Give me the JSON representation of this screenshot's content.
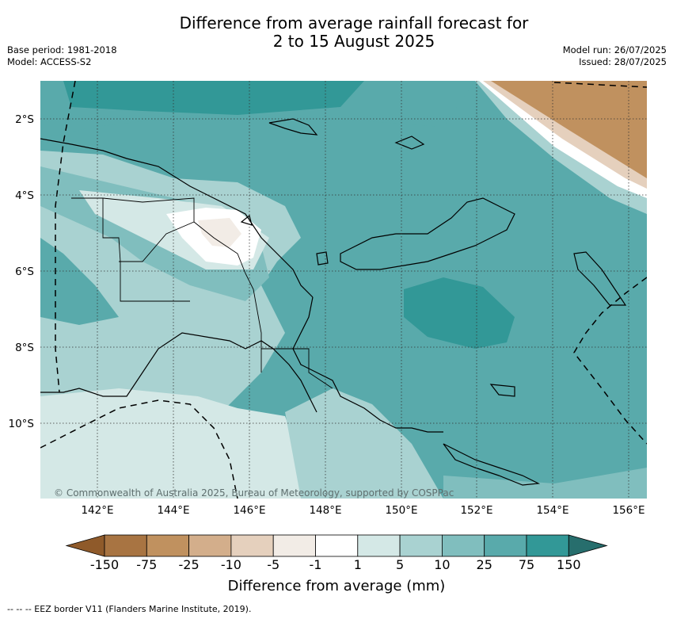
{
  "title": {
    "line1": "Difference from average rainfall forecast for",
    "line2": "2 to 15 August 2025"
  },
  "meta_left": {
    "base_period": "Base period: 1981-2018",
    "model": "Model: ACCESS-S2"
  },
  "meta_right": {
    "model_run": "Model run: 26/07/2025",
    "issued": "Issued: 28/07/2025"
  },
  "map": {
    "lat_labels": [
      "2°S",
      "4°S",
      "6°S",
      "8°S",
      "10°S"
    ],
    "lon_labels": [
      "142°E",
      "144°E",
      "146°E",
      "148°E",
      "150°E",
      "152°E",
      "154°E",
      "156°E"
    ],
    "credit": "© Commonwealth of Australia 2025, Bureau of Meteorology, supported by COSPPac",
    "gridlines": "dotted",
    "eez_border_style": "dashed",
    "region_focus": "Papua New Guinea"
  },
  "colorbar": {
    "title": "Difference from average (mm)",
    "ticks": [
      "-150",
      "-75",
      "-25",
      "-10",
      "-5",
      "-1",
      "1",
      "5",
      "10",
      "25",
      "75",
      "150"
    ],
    "colors": [
      "#8f5a2a",
      "#a87442",
      "#c0915f",
      "#d3ae8b",
      "#e5d0bd",
      "#f2ece6",
      "#ffffff",
      "#d4e8e6",
      "#a9d2d1",
      "#80bebe",
      "#59aaab",
      "#329897",
      "#276e6d"
    ]
  },
  "legend_note": "--  --  -- EEZ border V11 (Flanders Marine Institute, 2019)."
}
